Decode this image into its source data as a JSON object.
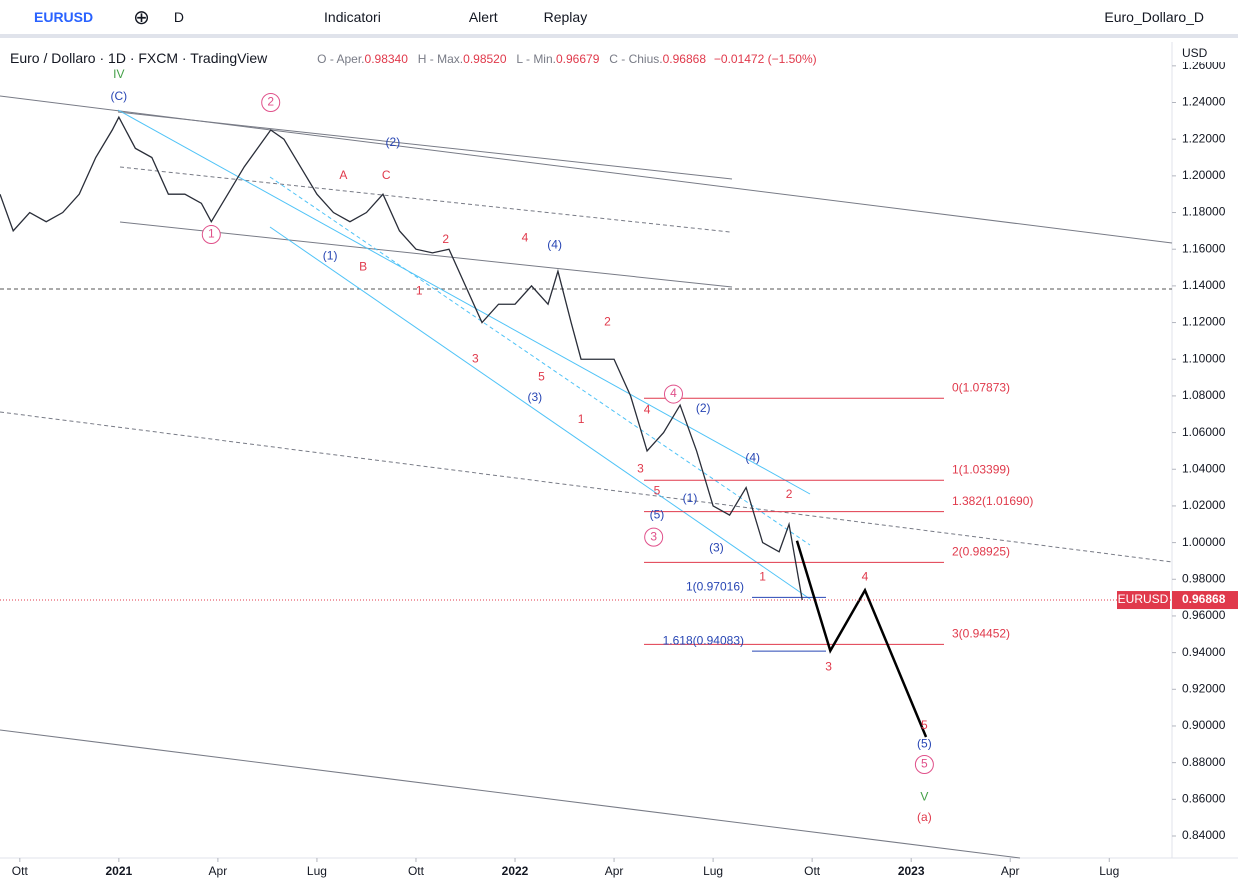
{
  "toolbar": {
    "symbol": "EURUSD",
    "interval": "D",
    "buttons": [
      "Indicatori",
      "Alert",
      "Replay"
    ],
    "layout_name": "Euro_Dollaro_D"
  },
  "legend": {
    "title": "Euro / Dollaro · 1D · FXCM · TradingView",
    "ohlc": [
      {
        "label": "O - Aper.",
        "value": "0.98340"
      },
      {
        "label": "H - Max.",
        "value": "0.98520"
      },
      {
        "label": "L - Min.",
        "value": "0.96679"
      },
      {
        "label": "C - Chius.",
        "value": "0.96868"
      }
    ],
    "change": "−0.01472 (−1.50%)"
  },
  "price_axis": {
    "currency": "USD",
    "last_symbol": "EURUSD",
    "last_price": {
      "value": 0.96868,
      "label": "0.96868"
    }
  },
  "chart_data": {
    "type": "line",
    "color": "#2a2e39",
    "xlim": [
      -0.6,
      34.9
    ],
    "ylim": [
      0.828,
      1.273
    ],
    "xticks": [
      {
        "value": 0,
        "label": "Ott"
      },
      {
        "value": 3,
        "label": "2021"
      },
      {
        "value": 6,
        "label": "Apr"
      },
      {
        "value": 9,
        "label": "Lug"
      },
      {
        "value": 12,
        "label": "Ott"
      },
      {
        "value": 15,
        "label": "2022"
      },
      {
        "value": 18,
        "label": "Apr"
      },
      {
        "value": 21,
        "label": "Lug"
      },
      {
        "value": 24,
        "label": "Ott"
      },
      {
        "value": 27,
        "label": "2023"
      },
      {
        "value": 30,
        "label": "Apr"
      },
      {
        "value": 33,
        "label": "Lug"
      }
    ],
    "yticks": [
      {
        "value": 0.84,
        "label": "0.84000"
      },
      {
        "value": 0.86,
        "label": "0.86000"
      },
      {
        "value": 0.88,
        "label": "0.88000"
      },
      {
        "value": 0.9,
        "label": "0.90000"
      },
      {
        "value": 0.92,
        "label": "0.92000"
      },
      {
        "value": 0.94,
        "label": "0.94000"
      },
      {
        "value": 0.96,
        "label": "0.96000"
      },
      {
        "value": 0.98,
        "label": "0.98000"
      },
      {
        "value": 1.0,
        "label": "1.00000"
      },
      {
        "value": 1.02,
        "label": "1.02000"
      },
      {
        "value": 1.04,
        "label": "1.04000"
      },
      {
        "value": 1.06,
        "label": "1.06000"
      },
      {
        "value": 1.08,
        "label": "1.08000"
      },
      {
        "value": 1.1,
        "label": "1.10000"
      },
      {
        "value": 1.12,
        "label": "1.12000"
      },
      {
        "value": 1.14,
        "label": "1.14000"
      },
      {
        "value": 1.16,
        "label": "1.16000"
      },
      {
        "value": 1.18,
        "label": "1.18000"
      },
      {
        "value": 1.2,
        "label": "1.20000"
      },
      {
        "value": 1.22,
        "label": "1.22000"
      },
      {
        "value": 1.24,
        "label": "1.24000"
      },
      {
        "value": 1.26,
        "label": "1.26000"
      }
    ],
    "x": [
      -0.6,
      -0.2,
      0.3,
      0.8,
      1.3,
      1.8,
      2.3,
      2.8,
      3.0,
      3.5,
      4.0,
      4.5,
      5.0,
      5.5,
      5.8,
      6.3,
      6.8,
      7.2,
      7.6,
      8.0,
      8.5,
      9.0,
      9.5,
      10.0,
      10.5,
      11.0,
      11.5,
      12.0,
      12.5,
      13.0,
      13.5,
      14.0,
      14.5,
      15.0,
      15.5,
      16.0,
      16.3,
      16.7,
      17.0,
      17.5,
      18.0,
      18.5,
      19.0,
      19.5,
      20.0,
      20.5,
      21.0,
      21.5,
      22.0,
      22.5,
      23.0,
      23.3,
      23.7
    ],
    "values": [
      1.19,
      1.17,
      1.18,
      1.175,
      1.18,
      1.19,
      1.21,
      1.225,
      1.232,
      1.215,
      1.21,
      1.19,
      1.19,
      1.185,
      1.175,
      1.19,
      1.205,
      1.215,
      1.225,
      1.22,
      1.205,
      1.19,
      1.18,
      1.175,
      1.18,
      1.19,
      1.17,
      1.16,
      1.158,
      1.16,
      1.14,
      1.12,
      1.13,
      1.13,
      1.14,
      1.13,
      1.148,
      1.12,
      1.1,
      1.1,
      1.1,
      1.08,
      1.05,
      1.06,
      1.075,
      1.05,
      1.02,
      1.015,
      1.03,
      1.0,
      0.995,
      1.01,
      0.96868
    ],
    "projection": {
      "x": [
        23.54,
        24.55,
        25.6,
        27.45
      ],
      "values": [
        1.001,
        0.941,
        0.974,
        0.894
      ]
    },
    "fib": [
      {
        "label": "0(1.07873)",
        "value": 1.07873
      },
      {
        "label": "1(1.03399)",
        "value": 1.03399
      },
      {
        "label": "1.382(1.01690)",
        "value": 1.0169
      },
      {
        "label": "2(0.98925)",
        "value": 0.98925
      },
      {
        "label": "3(0.94452)",
        "value": 0.94452
      }
    ],
    "fib2": [
      {
        "label": "1(0.97016)",
        "value": 0.97016
      },
      {
        "label": "1.618(0.94083)",
        "value": 0.94083
      }
    ],
    "annotations": [
      {
        "text": "IV",
        "x": 3,
        "y": 1.255,
        "color": "#43a047"
      },
      {
        "text": "(C)",
        "x": 3,
        "y": 1.243,
        "color": "#2846b4"
      },
      {
        "text": "2",
        "x": 7.6,
        "y": 1.24,
        "color": "#e0508a",
        "circle": true
      },
      {
        "text": "(2)",
        "x": 11.3,
        "y": 1.218,
        "color": "#2846b4"
      },
      {
        "text": "A",
        "x": 9.8,
        "y": 1.2,
        "color": "#e0394b"
      },
      {
        "text": "C",
        "x": 11.1,
        "y": 1.2,
        "color": "#e0394b"
      },
      {
        "text": "1",
        "x": 5.8,
        "y": 1.168,
        "color": "#e0508a",
        "circle": true
      },
      {
        "text": "(1)",
        "x": 9.4,
        "y": 1.156,
        "color": "#2846b4"
      },
      {
        "text": "B",
        "x": 10.4,
        "y": 1.15,
        "color": "#e0394b"
      },
      {
        "text": "2",
        "x": 12.9,
        "y": 1.165,
        "color": "#e0394b"
      },
      {
        "text": "1",
        "x": 12.1,
        "y": 1.137,
        "color": "#e0394b"
      },
      {
        "text": "4",
        "x": 15.3,
        "y": 1.166,
        "color": "#e0394b"
      },
      {
        "text": "(4)",
        "x": 16.2,
        "y": 1.162,
        "color": "#2846b4"
      },
      {
        "text": "3",
        "x": 13.8,
        "y": 1.1,
        "color": "#e0394b"
      },
      {
        "text": "5",
        "x": 15.8,
        "y": 1.09,
        "color": "#e0394b"
      },
      {
        "text": "(3)",
        "x": 15.6,
        "y": 1.079,
        "color": "#2846b4"
      },
      {
        "text": "2",
        "x": 17.8,
        "y": 1.12,
        "color": "#e0394b"
      },
      {
        "text": "1",
        "x": 17,
        "y": 1.067,
        "color": "#e0394b"
      },
      {
        "text": "4",
        "x": 19.8,
        "y": 1.081,
        "color": "#e0508a",
        "circle": true
      },
      {
        "text": "4",
        "x": 19,
        "y": 1.072,
        "color": "#e0394b"
      },
      {
        "text": "(2)",
        "x": 20.7,
        "y": 1.073,
        "color": "#2846b4"
      },
      {
        "text": "3",
        "x": 18.8,
        "y": 1.04,
        "color": "#e0394b"
      },
      {
        "text": "5",
        "x": 19.3,
        "y": 1.028,
        "color": "#e0394b"
      },
      {
        "text": "(1)",
        "x": 20.3,
        "y": 1.024,
        "color": "#2846b4"
      },
      {
        "text": "(5)",
        "x": 19.3,
        "y": 1.015,
        "color": "#2846b4"
      },
      {
        "text": "3",
        "x": 19.2,
        "y": 1.003,
        "color": "#e0508a",
        "circle": true
      },
      {
        "text": "(4)",
        "x": 22.2,
        "y": 1.046,
        "color": "#2846b4"
      },
      {
        "text": "2",
        "x": 23.3,
        "y": 1.026,
        "color": "#e0394b"
      },
      {
        "text": "(3)",
        "x": 21.1,
        "y": 0.997,
        "color": "#2846b4"
      },
      {
        "text": "1",
        "x": 22.5,
        "y": 0.981,
        "color": "#e0394b"
      },
      {
        "text": "4",
        "x": 25.6,
        "y": 0.981,
        "color": "#e0394b"
      },
      {
        "text": "3",
        "x": 24.5,
        "y": 0.932,
        "color": "#e0394b"
      },
      {
        "text": "5",
        "x": 27.4,
        "y": 0.9,
        "color": "#e0394b"
      },
      {
        "text": "(5)",
        "x": 27.4,
        "y": 0.89,
        "color": "#2846b4"
      },
      {
        "text": "5",
        "x": 27.4,
        "y": 0.879,
        "color": "#e0508a",
        "circle": true
      },
      {
        "text": "V",
        "x": 27.4,
        "y": 0.861,
        "color": "#43a047"
      },
      {
        "text": "(a)",
        "x": 27.4,
        "y": 0.85,
        "color": "#e0394b"
      }
    ]
  }
}
